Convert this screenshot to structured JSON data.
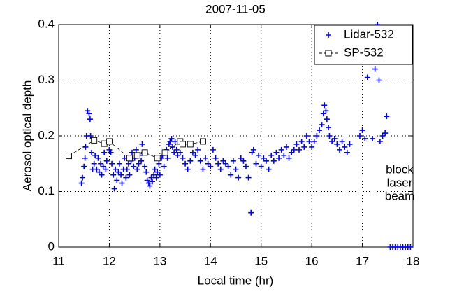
{
  "chart_data": {
    "type": "scatter",
    "title": "2007-11-05",
    "x_label": "Local time (hr)",
    "y_label": "Aerosol optical depth",
    "xlim": [
      11,
      18
    ],
    "xticks": [
      11,
      12,
      13,
      14,
      15,
      16,
      17,
      18
    ],
    "ylim": [
      0,
      0.4
    ],
    "yticks": [
      0,
      0.1,
      0.2,
      0.3,
      0.4
    ],
    "grid": true,
    "legend": "upper right",
    "annotation_lines": [
      "block",
      "laser",
      "beam"
    ],
    "series": [
      {
        "name": "Lidar-532",
        "color": "#0000ff",
        "marker": "plus",
        "x": [
          11.45,
          11.47,
          11.5,
          11.52,
          11.53,
          11.55,
          11.57,
          11.6,
          11.62,
          11.63,
          11.65,
          11.67,
          11.7,
          11.72,
          11.75,
          11.78,
          11.8,
          11.83,
          11.85,
          11.88,
          11.9,
          11.93,
          11.95,
          11.98,
          12.0,
          12.03,
          12.05,
          12.08,
          12.1,
          12.12,
          12.15,
          12.18,
          12.2,
          12.23,
          12.25,
          12.28,
          12.3,
          12.33,
          12.35,
          12.38,
          12.4,
          12.43,
          12.45,
          12.48,
          12.5,
          12.53,
          12.55,
          12.58,
          12.6,
          12.63,
          12.65,
          12.68,
          12.7,
          12.73,
          12.75,
          12.78,
          12.8,
          12.83,
          12.85,
          12.88,
          12.9,
          12.93,
          12.95,
          12.98,
          13.0,
          13.03,
          13.05,
          13.08,
          13.1,
          13.13,
          13.15,
          13.18,
          13.2,
          13.23,
          13.25,
          13.28,
          13.3,
          13.33,
          13.35,
          13.4,
          13.45,
          13.5,
          13.55,
          13.6,
          13.65,
          13.7,
          13.75,
          13.8,
          13.85,
          13.9,
          13.95,
          14.0,
          14.05,
          14.1,
          14.15,
          14.2,
          14.25,
          14.3,
          14.35,
          14.4,
          14.45,
          14.5,
          14.55,
          14.6,
          14.65,
          14.7,
          14.75,
          14.8,
          14.82,
          14.85,
          14.9,
          14.95,
          15.0,
          15.05,
          15.1,
          15.15,
          15.2,
          15.25,
          15.3,
          15.35,
          15.4,
          15.45,
          15.5,
          15.55,
          15.6,
          15.65,
          15.7,
          15.75,
          15.8,
          15.85,
          15.9,
          15.95,
          16.0,
          16.05,
          16.1,
          16.15,
          16.2,
          16.23,
          16.25,
          16.28,
          16.3,
          16.33,
          16.35,
          16.4,
          16.45,
          16.5,
          16.55,
          16.6,
          16.65,
          16.7,
          16.75,
          16.95,
          17.0,
          17.05,
          17.1,
          17.2,
          17.25,
          17.3,
          17.33,
          17.35,
          17.4,
          17.45,
          17.48,
          17.55,
          17.6,
          17.65,
          17.7,
          17.75,
          17.8,
          17.85,
          17.9,
          17.95
        ],
        "values": [
          0.115,
          0.125,
          0.145,
          0.16,
          0.18,
          0.2,
          0.245,
          0.24,
          0.23,
          0.2,
          0.17,
          0.14,
          0.15,
          0.165,
          0.14,
          0.16,
          0.135,
          0.15,
          0.13,
          0.145,
          0.17,
          0.14,
          0.155,
          0.19,
          0.175,
          0.17,
          0.15,
          0.13,
          0.105,
          0.14,
          0.12,
          0.135,
          0.15,
          0.13,
          0.115,
          0.14,
          0.16,
          0.125,
          0.14,
          0.15,
          0.13,
          0.155,
          0.17,
          0.145,
          0.16,
          0.175,
          0.14,
          0.15,
          0.165,
          0.155,
          0.185,
          0.17,
          0.145,
          0.135,
          0.12,
          0.115,
          0.11,
          0.125,
          0.118,
          0.13,
          0.14,
          0.125,
          0.135,
          0.15,
          0.13,
          0.16,
          0.165,
          0.145,
          0.17,
          0.175,
          0.16,
          0.185,
          0.19,
          0.195,
          0.18,
          0.17,
          0.19,
          0.175,
          0.165,
          0.17,
          0.16,
          0.15,
          0.14,
          0.155,
          0.17,
          0.165,
          0.175,
          0.155,
          0.14,
          0.16,
          0.15,
          0.145,
          0.175,
          0.16,
          0.15,
          0.14,
          0.155,
          0.15,
          0.145,
          0.13,
          0.155,
          0.14,
          0.125,
          0.16,
          0.155,
          0.145,
          0.125,
          0.062,
          0.17,
          0.175,
          0.15,
          0.165,
          0.145,
          0.16,
          0.155,
          0.14,
          0.165,
          0.155,
          0.17,
          0.16,
          0.175,
          0.165,
          0.18,
          0.16,
          0.17,
          0.175,
          0.185,
          0.175,
          0.19,
          0.18,
          0.2,
          0.19,
          0.18,
          0.19,
          0.2,
          0.21,
          0.22,
          0.24,
          0.255,
          0.245,
          0.23,
          0.215,
          0.2,
          0.19,
          0.195,
          0.185,
          0.175,
          0.19,
          0.18,
          0.17,
          0.185,
          0.2,
          0.21,
          0.195,
          0.305,
          0.195,
          0.32,
          0.4,
          0.3,
          0.19,
          0.2,
          0.205,
          0.235,
          0,
          0,
          0,
          0,
          0,
          0,
          0,
          0,
          0
        ]
      },
      {
        "name": "SP-532",
        "color": "#000000",
        "marker": "square",
        "x": [
          11.2,
          11.7,
          11.9,
          12.0,
          12.4,
          12.55,
          12.7,
          12.95,
          13.1,
          13.4,
          13.45,
          13.6,
          13.85
        ],
        "values": [
          0.164,
          0.192,
          0.186,
          0.19,
          0.16,
          0.165,
          0.17,
          0.16,
          0.17,
          0.19,
          0.185,
          0.185,
          0.19
        ]
      }
    ]
  }
}
